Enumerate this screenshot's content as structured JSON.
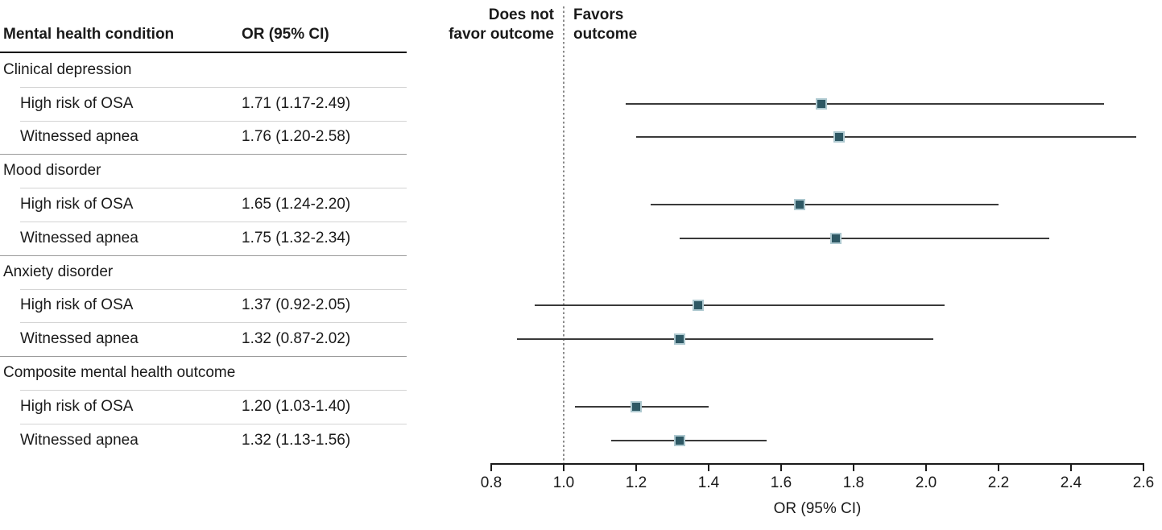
{
  "table": {
    "col1_header": "Mental health condition",
    "col2_header": "OR (95% CI)"
  },
  "plot": {
    "left_label_line1": "Does not",
    "left_label_line2": "favor outcome",
    "right_label_line1": "Favors",
    "right_label_line2": "outcome",
    "xlabel": "OR (95% CI)"
  },
  "colors": {
    "marker_fill": "#2e5864",
    "marker_border": "#aec9d0",
    "ci_line": "#3a3a3a",
    "ref_line": "#8a8a8a",
    "axis": "#1a1a1a",
    "text": "#1a1a1a",
    "header_rule": "#000000",
    "group_rule": "#9a9a9a",
    "row_rule": "#d4d4d4"
  },
  "chart_data": {
    "type": "scatter",
    "subtype": "forest-plot",
    "xlabel": "OR (95% CI)",
    "xlim": [
      0.8,
      2.6
    ],
    "xtick_labels": [
      "0.8",
      "1.0",
      "1.2",
      "1.4",
      "1.6",
      "1.8",
      "2.0",
      "2.2",
      "2.4",
      "2.6"
    ],
    "reference_line": 1.0,
    "region_labels": {
      "left": "Does not favor outcome",
      "right": "Favors outcome"
    },
    "grid": false,
    "groups": [
      {
        "condition": "Clinical depression",
        "items": [
          {
            "label": "High risk of OSA",
            "or": 1.71,
            "ci_low": 1.17,
            "ci_high": 2.49,
            "display": "1.71 (1.17-2.49)"
          },
          {
            "label": "Witnessed apnea",
            "or": 1.76,
            "ci_low": 1.2,
            "ci_high": 2.58,
            "display": "1.76 (1.20-2.58)"
          }
        ]
      },
      {
        "condition": "Mood disorder",
        "items": [
          {
            "label": "High risk of OSA",
            "or": 1.65,
            "ci_low": 1.24,
            "ci_high": 2.2,
            "display": "1.65 (1.24-2.20)"
          },
          {
            "label": "Witnessed apnea",
            "or": 1.75,
            "ci_low": 1.32,
            "ci_high": 2.34,
            "display": "1.75 (1.32-2.34)"
          }
        ]
      },
      {
        "condition": "Anxiety disorder",
        "items": [
          {
            "label": "High risk of OSA",
            "or": 1.37,
            "ci_low": 0.92,
            "ci_high": 2.05,
            "display": "1.37 (0.92-2.05)"
          },
          {
            "label": "Witnessed apnea",
            "or": 1.32,
            "ci_low": 0.87,
            "ci_high": 2.02,
            "display": "1.32 (0.87-2.02)"
          }
        ]
      },
      {
        "condition": "Composite mental health outcome",
        "items": [
          {
            "label": "High risk of OSA",
            "or": 1.2,
            "ci_low": 1.03,
            "ci_high": 1.4,
            "display": "1.20 (1.03-1.40)"
          },
          {
            "label": "Witnessed apnea",
            "or": 1.32,
            "ci_low": 1.13,
            "ci_high": 1.56,
            "display": "1.32 (1.13-1.56)"
          }
        ]
      }
    ]
  }
}
